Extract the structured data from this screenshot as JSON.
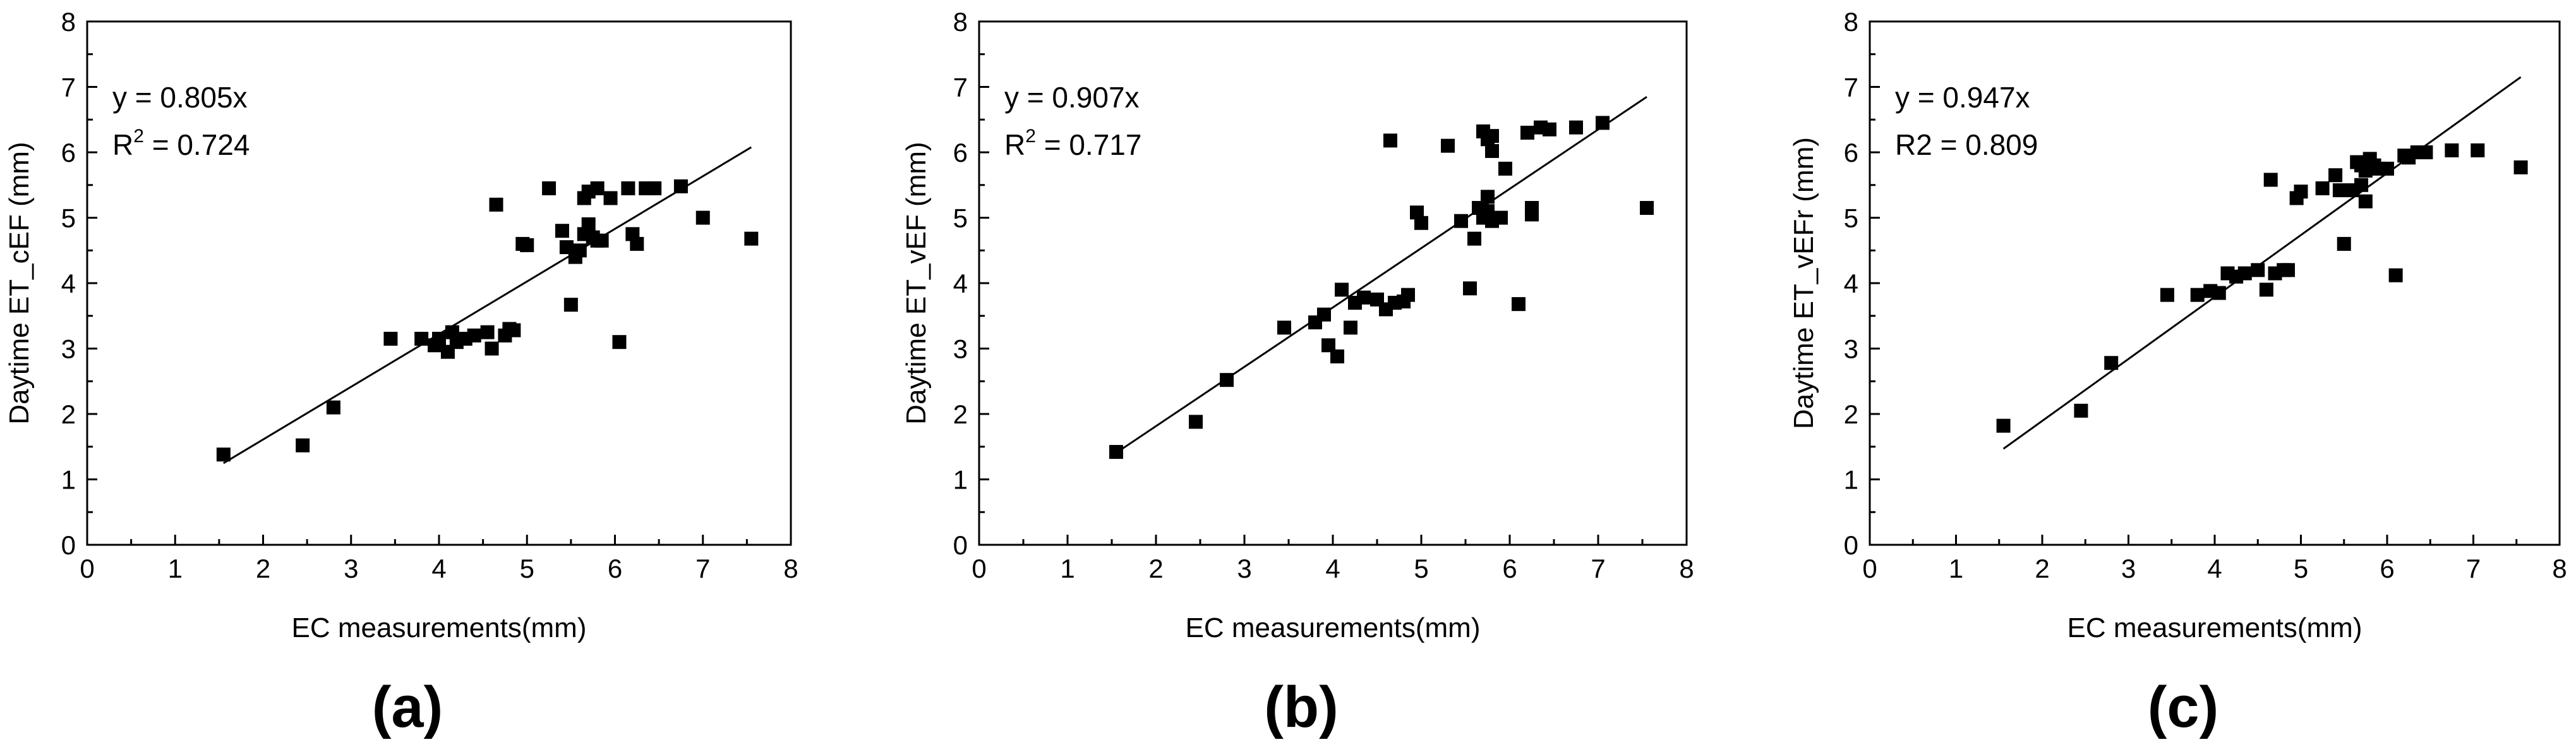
{
  "chart_data": [
    {
      "type": "scatter",
      "panel_label": "(a)",
      "xlabel": "EC measurements(mm)",
      "ylabel": "Daytime ET_cEF (mm)",
      "xlim": [
        0,
        8
      ],
      "ylim": [
        0,
        8
      ],
      "xticks": [
        "0",
        "1",
        "2",
        "3",
        "4",
        "5",
        "6",
        "7",
        "8"
      ],
      "yticks": [
        "0",
        "1",
        "2",
        "3",
        "4",
        "5",
        "6",
        "7",
        "8"
      ],
      "equation": "y = 0.805x",
      "r2_prefix": "R",
      "r2_sup": "2",
      "r2_value": " = 0.724",
      "fit": {
        "slope": 0.805,
        "x_range": [
          1.55,
          7.55
        ]
      },
      "points": [
        [
          1.55,
          1.38
        ],
        [
          2.45,
          1.52
        ],
        [
          2.8,
          2.1
        ],
        [
          3.45,
          3.15
        ],
        [
          3.8,
          3.15
        ],
        [
          3.95,
          3.05
        ],
        [
          4.0,
          3.15
        ],
        [
          4.1,
          2.95
        ],
        [
          4.15,
          3.25
        ],
        [
          4.2,
          3.1
        ],
        [
          4.3,
          3.15
        ],
        [
          4.4,
          3.2
        ],
        [
          4.55,
          3.25
        ],
        [
          4.6,
          3.0
        ],
        [
          4.65,
          5.2
        ],
        [
          4.75,
          3.2
        ],
        [
          4.8,
          3.3
        ],
        [
          4.85,
          3.28
        ],
        [
          4.95,
          4.6
        ],
        [
          5.0,
          4.58
        ],
        [
          5.25,
          5.45
        ],
        [
          5.4,
          4.8
        ],
        [
          5.45,
          4.55
        ],
        [
          5.5,
          3.67
        ],
        [
          5.55,
          4.4
        ],
        [
          5.6,
          4.5
        ],
        [
          5.65,
          5.3
        ],
        [
          5.65,
          4.75
        ],
        [
          5.7,
          5.4
        ],
        [
          5.7,
          4.9
        ],
        [
          5.75,
          4.7
        ],
        [
          5.8,
          5.45
        ],
        [
          5.8,
          4.65
        ],
        [
          5.85,
          4.65
        ],
        [
          5.95,
          5.3
        ],
        [
          6.05,
          3.1
        ],
        [
          6.15,
          5.45
        ],
        [
          6.2,
          4.75
        ],
        [
          6.25,
          4.6
        ],
        [
          6.35,
          5.45
        ],
        [
          6.45,
          5.45
        ],
        [
          6.75,
          5.48
        ],
        [
          7.0,
          5.0
        ],
        [
          7.55,
          4.68
        ]
      ]
    },
    {
      "type": "scatter",
      "panel_label": "(b)",
      "xlabel": "EC measurements(mm)",
      "ylabel": "Daytime ET_vEF (mm)",
      "xlim": [
        0,
        8
      ],
      "ylim": [
        0,
        8
      ],
      "xticks": [
        "0",
        "1",
        "2",
        "3",
        "4",
        "5",
        "6",
        "7",
        "8"
      ],
      "yticks": [
        "0",
        "1",
        "2",
        "3",
        "4",
        "5",
        "6",
        "7",
        "8"
      ],
      "equation": "y = 0.907x",
      "r2_prefix": "R",
      "r2_sup": "2",
      "r2_value": " = 0.717",
      "fit": {
        "slope": 0.907,
        "x_range": [
          1.55,
          7.55
        ]
      },
      "points": [
        [
          1.55,
          1.42
        ],
        [
          2.45,
          1.88
        ],
        [
          2.8,
          2.52
        ],
        [
          3.45,
          3.32
        ],
        [
          3.8,
          3.4
        ],
        [
          3.9,
          3.52
        ],
        [
          3.95,
          3.05
        ],
        [
          4.05,
          2.88
        ],
        [
          4.1,
          3.9
        ],
        [
          4.2,
          3.32
        ],
        [
          4.25,
          3.7
        ],
        [
          4.35,
          3.78
        ],
        [
          4.5,
          3.75
        ],
        [
          4.6,
          3.6
        ],
        [
          4.65,
          6.18
        ],
        [
          4.7,
          3.7
        ],
        [
          4.8,
          3.72
        ],
        [
          4.85,
          3.82
        ],
        [
          4.95,
          5.08
        ],
        [
          5.0,
          4.92
        ],
        [
          5.3,
          6.1
        ],
        [
          5.45,
          4.95
        ],
        [
          5.55,
          3.92
        ],
        [
          5.6,
          4.68
        ],
        [
          5.65,
          5.15
        ],
        [
          5.7,
          6.32
        ],
        [
          5.7,
          5.0
        ],
        [
          5.75,
          6.2
        ],
        [
          5.75,
          5.32
        ],
        [
          5.75,
          5.1
        ],
        [
          5.8,
          6.25
        ],
        [
          5.8,
          6.02
        ],
        [
          5.8,
          4.95
        ],
        [
          5.9,
          5.0
        ],
        [
          5.95,
          5.75
        ],
        [
          6.1,
          3.68
        ],
        [
          6.2,
          6.3
        ],
        [
          6.25,
          5.15
        ],
        [
          6.25,
          5.05
        ],
        [
          6.35,
          6.38
        ],
        [
          6.45,
          6.35
        ],
        [
          6.75,
          6.38
        ],
        [
          7.05,
          6.45
        ],
        [
          7.55,
          5.15
        ]
      ]
    },
    {
      "type": "scatter",
      "panel_label": "(c)",
      "xlabel": "EC measurements(mm)",
      "ylabel": "Daytime ET_vEFr (mm)",
      "xlim": [
        0,
        8
      ],
      "ylim": [
        0,
        8
      ],
      "xticks": [
        "0",
        "1",
        "2",
        "3",
        "4",
        "5",
        "6",
        "7",
        "8"
      ],
      "yticks": [
        "0",
        "1",
        "2",
        "3",
        "4",
        "5",
        "6",
        "7",
        "8"
      ],
      "equation": "y = 0.947x",
      "r2_prefix": "R2",
      "r2_sup": "",
      "r2_value": " = 0.809",
      "fit": {
        "slope": 0.947,
        "x_range": [
          1.55,
          7.55
        ]
      },
      "points": [
        [
          1.55,
          1.82
        ],
        [
          2.45,
          2.05
        ],
        [
          2.8,
          2.78
        ],
        [
          3.45,
          3.82
        ],
        [
          3.8,
          3.82
        ],
        [
          3.95,
          3.88
        ],
        [
          4.05,
          3.85
        ],
        [
          4.15,
          4.15
        ],
        [
          4.25,
          4.1
        ],
        [
          4.35,
          4.15
        ],
        [
          4.5,
          4.2
        ],
        [
          4.6,
          3.9
        ],
        [
          4.65,
          5.58
        ],
        [
          4.7,
          4.15
        ],
        [
          4.8,
          4.2
        ],
        [
          4.85,
          4.2
        ],
        [
          4.95,
          5.3
        ],
        [
          5.0,
          5.4
        ],
        [
          5.25,
          5.45
        ],
        [
          5.4,
          5.65
        ],
        [
          5.45,
          5.42
        ],
        [
          5.5,
          4.6
        ],
        [
          5.6,
          5.42
        ],
        [
          5.65,
          5.85
        ],
        [
          5.7,
          5.8
        ],
        [
          5.7,
          5.5
        ],
        [
          5.75,
          5.72
        ],
        [
          5.75,
          5.25
        ],
        [
          5.8,
          5.9
        ],
        [
          5.85,
          5.8
        ],
        [
          5.9,
          5.75
        ],
        [
          6.0,
          5.75
        ],
        [
          6.1,
          4.12
        ],
        [
          6.2,
          5.95
        ],
        [
          6.25,
          5.92
        ],
        [
          6.35,
          6.0
        ],
        [
          6.45,
          6.0
        ],
        [
          6.75,
          6.03
        ],
        [
          7.05,
          6.03
        ],
        [
          7.55,
          5.77
        ]
      ]
    }
  ]
}
